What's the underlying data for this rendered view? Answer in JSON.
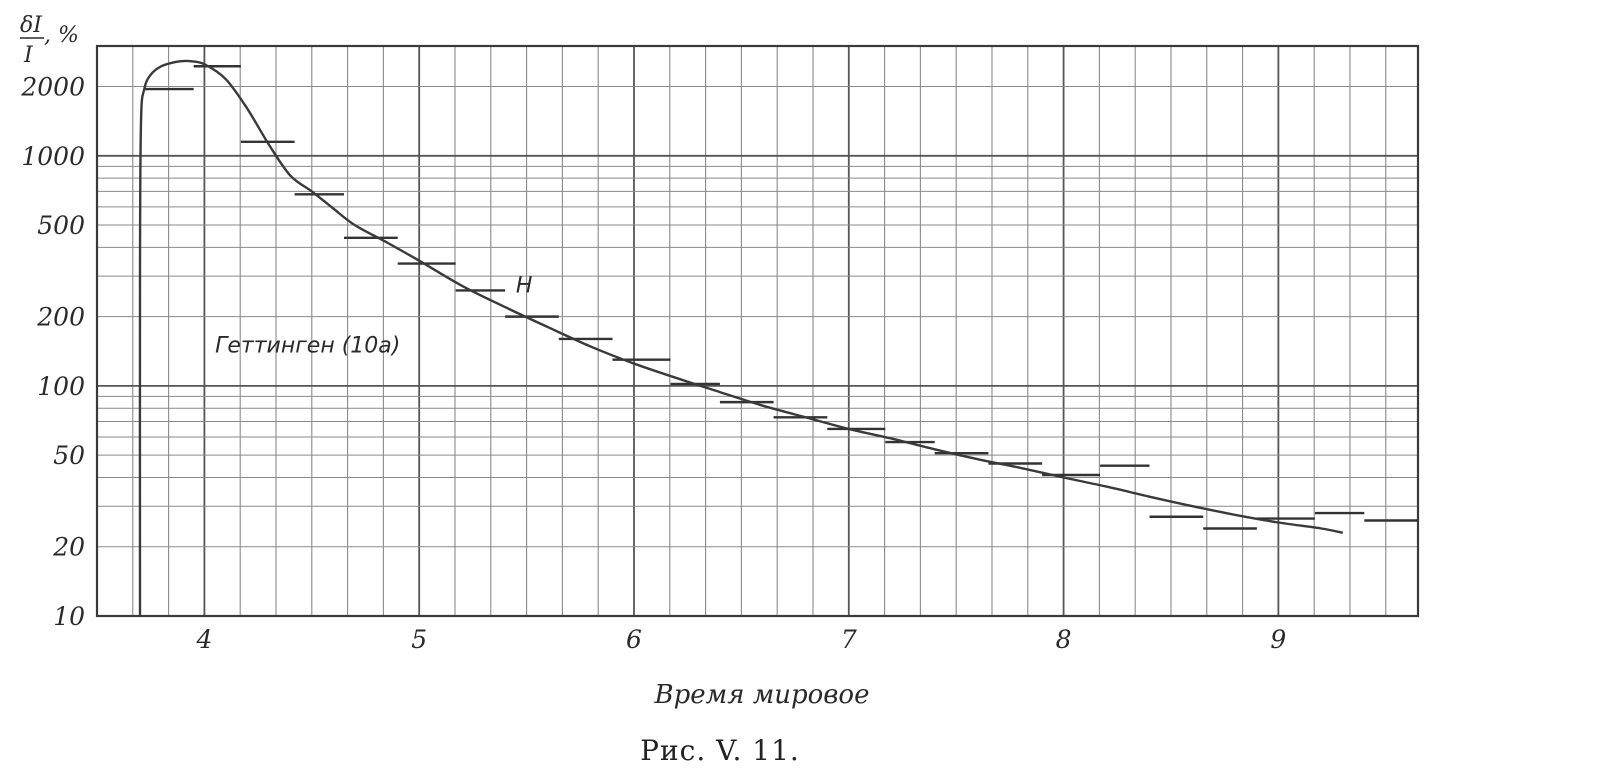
{
  "chart_data": {
    "type": "line",
    "title": "",
    "xlabel": "Время мировое",
    "ylabel_numerator": "δI",
    "ylabel_denominator": "I",
    "ylabel_unit": ", %",
    "y_scale": "log",
    "xlim": [
      3.5,
      9.65
    ],
    "ylim": [
      10,
      3000
    ],
    "x_ticks": [
      4,
      5,
      6,
      7,
      8,
      9
    ],
    "x_tick_labels": [
      "4",
      "5",
      "6",
      "7",
      "8",
      "9"
    ],
    "y_ticks": [
      10,
      20,
      50,
      100,
      200,
      500,
      1000,
      2000
    ],
    "y_tick_labels": [
      "10",
      "20",
      "50",
      "100",
      "200",
      "500",
      "1000",
      "2000"
    ],
    "grid": true,
    "annotations": [
      {
        "text": "Геттинген (10а)",
        "x": 4.05,
        "y": 140
      },
      {
        "text": "H",
        "x": 5.45,
        "y": 255
      }
    ],
    "series": [
      {
        "curve": [
          [
            3.7,
            10
          ],
          [
            3.7,
            300
          ],
          [
            3.705,
            1400
          ],
          [
            3.72,
            1950
          ],
          [
            3.75,
            2250
          ],
          [
            3.8,
            2450
          ],
          [
            3.87,
            2560
          ],
          [
            3.93,
            2580
          ],
          [
            4.0,
            2500
          ],
          [
            4.1,
            2150
          ],
          [
            4.2,
            1600
          ],
          [
            4.3,
            1120
          ],
          [
            4.4,
            820
          ],
          [
            4.5,
            700
          ],
          [
            4.6,
            590
          ],
          [
            4.7,
            500
          ],
          [
            4.85,
            420
          ],
          [
            5.0,
            350
          ],
          [
            5.2,
            272
          ],
          [
            5.4,
            220
          ],
          [
            5.6,
            180
          ],
          [
            5.8,
            148
          ],
          [
            6.0,
            125
          ],
          [
            6.2,
            108
          ],
          [
            6.4,
            94
          ],
          [
            6.6,
            82
          ],
          [
            6.8,
            73
          ],
          [
            7.0,
            65
          ],
          [
            7.2,
            59
          ],
          [
            7.4,
            53
          ],
          [
            7.6,
            48
          ],
          [
            7.8,
            44
          ],
          [
            8.0,
            40
          ],
          [
            8.2,
            36.5
          ],
          [
            8.4,
            33
          ],
          [
            8.6,
            30
          ],
          [
            8.8,
            27.5
          ],
          [
            9.0,
            25.5
          ],
          [
            9.2,
            24
          ],
          [
            9.3,
            23
          ]
        ]
      }
    ],
    "hourly_bars": [
      {
        "x0": 3.72,
        "x1": 3.95,
        "y": 1950
      },
      {
        "x0": 3.95,
        "x1": 4.17,
        "y": 2450
      },
      {
        "x0": 4.17,
        "x1": 4.42,
        "y": 1150
      },
      {
        "x0": 4.42,
        "x1": 4.65,
        "y": 680
      },
      {
        "x0": 4.65,
        "x1": 4.9,
        "y": 440
      },
      {
        "x0": 4.9,
        "x1": 5.17,
        "y": 340
      },
      {
        "x0": 5.17,
        "x1": 5.4,
        "y": 260
      },
      {
        "x0": 5.4,
        "x1": 5.65,
        "y": 200
      },
      {
        "x0": 5.65,
        "x1": 5.9,
        "y": 160
      },
      {
        "x0": 5.9,
        "x1": 6.17,
        "y": 130
      },
      {
        "x0": 6.17,
        "x1": 6.4,
        "y": 102
      },
      {
        "x0": 6.4,
        "x1": 6.65,
        "y": 85
      },
      {
        "x0": 6.65,
        "x1": 6.9,
        "y": 73
      },
      {
        "x0": 6.9,
        "x1": 7.17,
        "y": 65
      },
      {
        "x0": 7.17,
        "x1": 7.4,
        "y": 57
      },
      {
        "x0": 7.4,
        "x1": 7.65,
        "y": 51
      },
      {
        "x0": 7.65,
        "x1": 7.9,
        "y": 46
      },
      {
        "x0": 7.9,
        "x1": 8.17,
        "y": 41
      },
      {
        "x0": 8.17,
        "x1": 8.4,
        "y": 45
      },
      {
        "x0": 8.4,
        "x1": 8.65,
        "y": 27
      },
      {
        "x0": 8.65,
        "x1": 8.9,
        "y": 24
      },
      {
        "x0": 8.9,
        "x1": 9.17,
        "y": 26.5
      },
      {
        "x0": 9.17,
        "x1": 9.4,
        "y": 28
      },
      {
        "x0": 9.4,
        "x1": 9.65,
        "y": 26
      }
    ]
  },
  "caption": "Рис. V. 11."
}
